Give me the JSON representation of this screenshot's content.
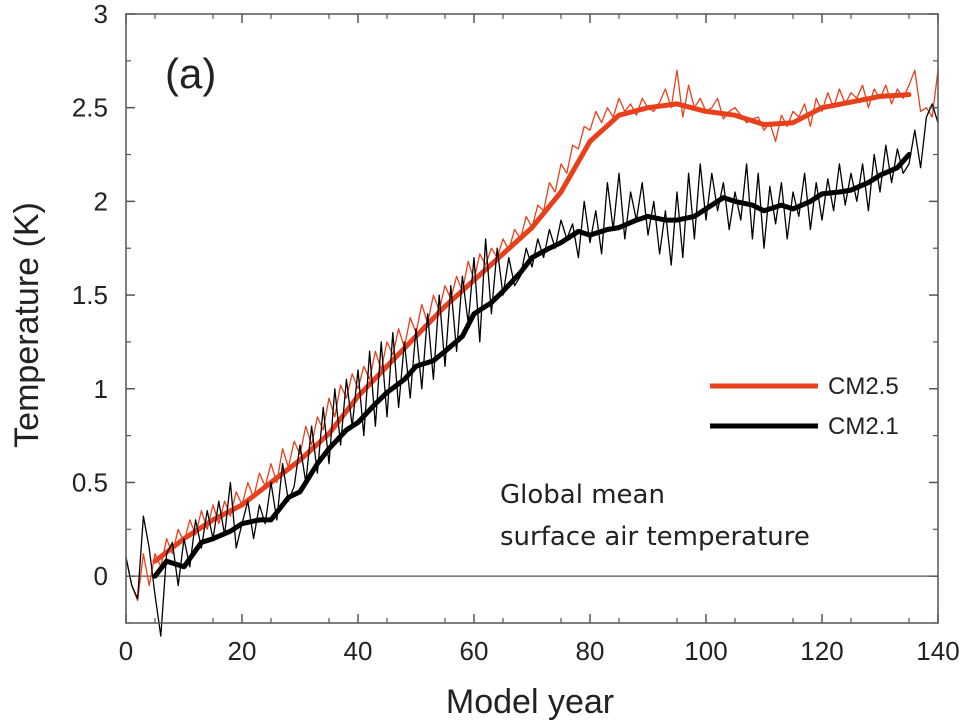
{
  "chart_data": {
    "type": "line",
    "panel_label": "(a)",
    "xlabel": "Model year",
    "ylabel": "Temperature  (K)",
    "xlim": [
      0,
      140
    ],
    "ylim": [
      -0.25,
      3
    ],
    "xticks": [
      0,
      20,
      40,
      60,
      80,
      100,
      120,
      140
    ],
    "xtick_labels": [
      "0",
      "20",
      "40",
      "60",
      "80",
      "100",
      "120",
      "140"
    ],
    "yticks": [
      0,
      0.5,
      1,
      1.5,
      2,
      2.5,
      3
    ],
    "ytick_labels": [
      "0",
      "0.5",
      "1",
      "1.5",
      "2",
      "2.5",
      "3"
    ],
    "reference_line_y": 0,
    "legend": {
      "position": "center-right",
      "entries": [
        "CM2.5",
        "CM2.1"
      ]
    },
    "annotation": [
      "Global mean",
      "surface air temperature"
    ],
    "series": [
      {
        "name": "CM2.5",
        "color": "#e8401c",
        "kind": "annual",
        "x": [
          0,
          1,
          2,
          3,
          4,
          5,
          6,
          7,
          8,
          9,
          10,
          11,
          12,
          13,
          14,
          15,
          16,
          17,
          18,
          19,
          20,
          21,
          22,
          23,
          24,
          25,
          26,
          27,
          28,
          29,
          30,
          31,
          32,
          33,
          34,
          35,
          36,
          37,
          38,
          39,
          40,
          41,
          42,
          43,
          44,
          45,
          46,
          47,
          48,
          49,
          50,
          51,
          52,
          53,
          54,
          55,
          56,
          57,
          58,
          59,
          60,
          61,
          62,
          63,
          64,
          65,
          66,
          67,
          68,
          69,
          70,
          71,
          72,
          73,
          74,
          75,
          76,
          77,
          78,
          79,
          80,
          81,
          82,
          83,
          84,
          85,
          86,
          87,
          88,
          89,
          90,
          91,
          92,
          93,
          94,
          95,
          96,
          97,
          98,
          99,
          100,
          101,
          102,
          103,
          104,
          105,
          106,
          107,
          108,
          109,
          110,
          111,
          112,
          113,
          114,
          115,
          116,
          117,
          118,
          119,
          120,
          121,
          122,
          123,
          124,
          125,
          126,
          127,
          128,
          129,
          130,
          131,
          132,
          133,
          134,
          135,
          136,
          137,
          138,
          139,
          140
        ],
        "values": [
          0.1,
          -0.05,
          -0.13,
          0.12,
          -0.05,
          0.12,
          0.05,
          0.2,
          0.12,
          0.25,
          0.18,
          0.3,
          0.22,
          0.35,
          0.25,
          0.38,
          0.28,
          0.4,
          0.32,
          0.45,
          0.38,
          0.5,
          0.42,
          0.55,
          0.48,
          0.6,
          0.5,
          0.68,
          0.58,
          0.72,
          0.65,
          0.8,
          0.7,
          0.85,
          0.78,
          0.95,
          0.85,
          1.02,
          0.95,
          1.08,
          1.0,
          1.12,
          1.05,
          1.2,
          1.1,
          1.25,
          1.18,
          1.32,
          1.22,
          1.38,
          1.3,
          1.45,
          1.35,
          1.5,
          1.42,
          1.55,
          1.48,
          1.6,
          1.52,
          1.68,
          1.58,
          1.72,
          1.66,
          1.75,
          1.7,
          1.8,
          1.74,
          1.85,
          1.8,
          1.92,
          1.86,
          1.98,
          1.95,
          2.1,
          2.05,
          2.2,
          2.15,
          2.3,
          2.28,
          2.4,
          2.38,
          2.48,
          2.42,
          2.5,
          2.45,
          2.55,
          2.48,
          2.52,
          2.46,
          2.55,
          2.5,
          2.48,
          2.53,
          2.6,
          2.5,
          2.7,
          2.45,
          2.62,
          2.5,
          2.55,
          2.48,
          2.5,
          2.55,
          2.44,
          2.48,
          2.5,
          2.46,
          2.42,
          2.44,
          2.45,
          2.38,
          2.42,
          2.32,
          2.46,
          2.4,
          2.48,
          2.45,
          2.52,
          2.4,
          2.55,
          2.48,
          2.58,
          2.5,
          2.6,
          2.52,
          2.58,
          2.55,
          2.62,
          2.5,
          2.6,
          2.55,
          2.62,
          2.52,
          2.6,
          2.55,
          2.62,
          2.7,
          2.48,
          2.5,
          2.45,
          2.7
        ]
      },
      {
        "name": "CM2.5",
        "color": "#e8401c",
        "kind": "smoothed",
        "x": [
          5,
          10,
          15,
          20,
          25,
          30,
          35,
          40,
          45,
          50,
          55,
          60,
          65,
          70,
          75,
          80,
          85,
          90,
          95,
          100,
          105,
          110,
          115,
          120,
          125,
          130,
          135
        ],
        "values": [
          0.08,
          0.2,
          0.3,
          0.38,
          0.5,
          0.62,
          0.76,
          0.96,
          1.12,
          1.28,
          1.44,
          1.58,
          1.72,
          1.86,
          2.05,
          2.32,
          2.46,
          2.5,
          2.52,
          2.48,
          2.46,
          2.41,
          2.42,
          2.5,
          2.53,
          2.56,
          2.57
        ]
      },
      {
        "name": "CM2.1",
        "color": "#000000",
        "kind": "annual",
        "x": [
          0,
          1,
          2,
          3,
          4,
          5,
          6,
          7,
          8,
          9,
          10,
          11,
          12,
          13,
          14,
          15,
          16,
          17,
          18,
          19,
          20,
          21,
          22,
          23,
          24,
          25,
          26,
          27,
          28,
          29,
          30,
          31,
          32,
          33,
          34,
          35,
          36,
          37,
          38,
          39,
          40,
          41,
          42,
          43,
          44,
          45,
          46,
          47,
          48,
          49,
          50,
          51,
          52,
          53,
          54,
          55,
          56,
          57,
          58,
          59,
          60,
          61,
          62,
          63,
          64,
          65,
          66,
          67,
          68,
          69,
          70,
          71,
          72,
          73,
          74,
          75,
          76,
          77,
          78,
          79,
          80,
          81,
          82,
          83,
          84,
          85,
          86,
          87,
          88,
          89,
          90,
          91,
          92,
          93,
          94,
          95,
          96,
          97,
          98,
          99,
          100,
          101,
          102,
          103,
          104,
          105,
          106,
          107,
          108,
          109,
          110,
          111,
          112,
          113,
          114,
          115,
          116,
          117,
          118,
          119,
          120,
          121,
          122,
          123,
          124,
          125,
          126,
          127,
          128,
          129,
          130,
          131,
          132,
          133,
          134,
          135,
          136,
          137,
          138,
          139,
          140
        ],
        "values": [
          0.1,
          -0.05,
          -0.12,
          0.32,
          0.15,
          -0.1,
          -0.32,
          0.12,
          0.18,
          -0.05,
          0.2,
          0.05,
          0.3,
          0.15,
          0.35,
          0.2,
          0.4,
          0.22,
          0.5,
          0.15,
          0.28,
          0.4,
          0.2,
          0.38,
          0.28,
          0.5,
          0.3,
          0.6,
          0.4,
          0.48,
          0.7,
          0.5,
          0.8,
          0.55,
          0.9,
          0.6,
          1.0,
          0.7,
          1.05,
          0.8,
          1.1,
          0.75,
          1.2,
          0.8,
          1.25,
          0.85,
          1.3,
          0.9,
          1.25,
          0.95,
          1.32,
          1.0,
          1.4,
          1.05,
          1.5,
          1.12,
          1.55,
          1.2,
          1.6,
          1.35,
          1.7,
          1.25,
          1.8,
          1.4,
          1.75,
          1.5,
          1.7,
          1.55,
          1.6,
          1.75,
          1.65,
          1.8,
          1.7,
          1.85,
          1.75,
          1.9,
          1.8,
          1.88,
          1.7,
          2.0,
          1.78,
          1.95,
          1.72,
          2.1,
          1.85,
          2.15,
          1.8,
          2.05,
          1.9,
          2.1,
          1.82,
          2.0,
          1.72,
          1.95,
          1.66,
          2.05,
          1.7,
          2.15,
          1.8,
          2.2,
          1.9,
          2.15,
          1.95,
          2.1,
          1.85,
          2.05,
          1.9,
          2.2,
          1.8,
          2.15,
          1.75,
          2.08,
          1.88,
          2.1,
          1.8,
          2.05,
          1.92,
          2.15,
          1.85,
          2.1,
          1.9,
          2.12,
          1.95,
          2.2,
          1.98,
          2.15,
          2.0,
          2.2,
          1.95,
          2.25,
          2.05,
          2.3,
          2.1,
          2.28,
          2.15,
          2.2,
          2.38,
          2.18,
          2.45,
          2.52,
          2.42
        ]
      },
      {
        "name": "CM2.1",
        "color": "#000000",
        "kind": "smoothed",
        "x": [
          5,
          7,
          10,
          13,
          15,
          18,
          20,
          23,
          25,
          28,
          30,
          33,
          35,
          38,
          40,
          43,
          45,
          48,
          50,
          53,
          55,
          58,
          60,
          63,
          65,
          68,
          70,
          73,
          75,
          78,
          80,
          83,
          85,
          88,
          90,
          93,
          95,
          98,
          100,
          103,
          105,
          108,
          110,
          113,
          115,
          118,
          120,
          123,
          125,
          128,
          130,
          133,
          135
        ],
        "values": [
          0.0,
          0.08,
          0.05,
          0.18,
          0.2,
          0.24,
          0.28,
          0.3,
          0.3,
          0.42,
          0.45,
          0.6,
          0.68,
          0.78,
          0.82,
          0.92,
          0.98,
          1.05,
          1.12,
          1.15,
          1.2,
          1.28,
          1.4,
          1.46,
          1.52,
          1.62,
          1.7,
          1.75,
          1.78,
          1.84,
          1.82,
          1.85,
          1.86,
          1.9,
          1.92,
          1.9,
          1.9,
          1.92,
          1.96,
          2.02,
          2.0,
          1.98,
          1.95,
          1.98,
          1.96,
          2.0,
          2.04,
          2.05,
          2.06,
          2.1,
          2.14,
          2.18,
          2.25
        ]
      }
    ]
  }
}
